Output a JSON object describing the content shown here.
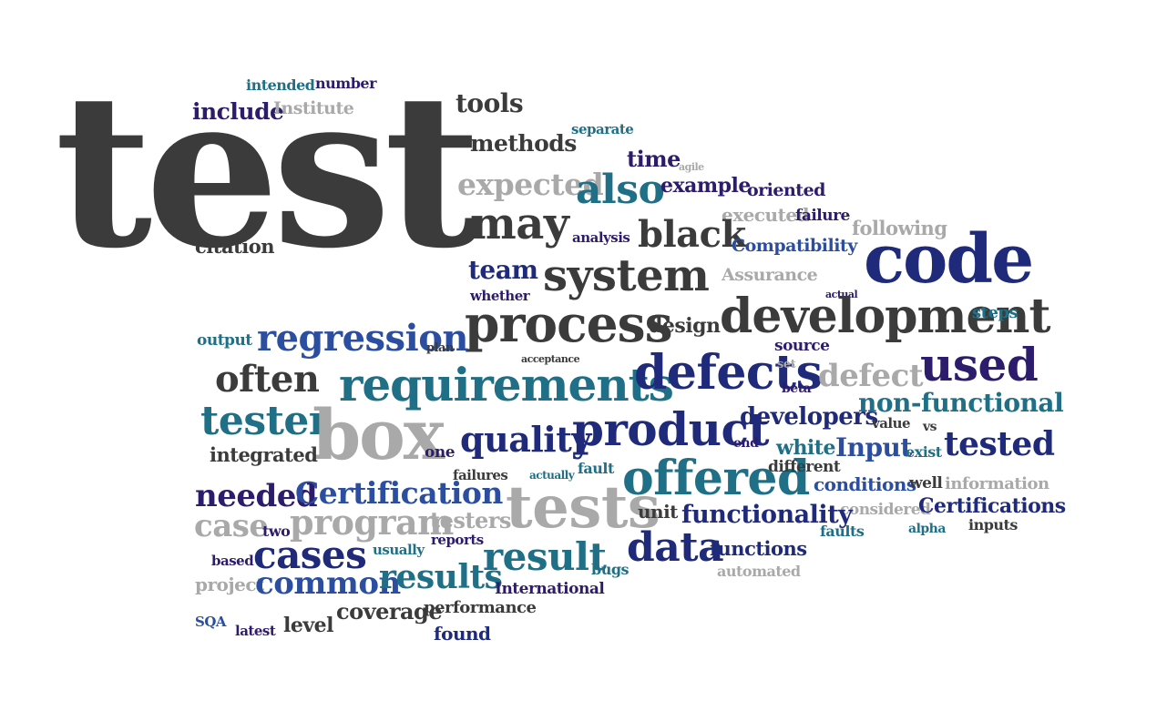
{
  "word_cloud": {
    "words": [
      "test",
      "intended",
      "number",
      "include",
      "Institute",
      "tools",
      "methods",
      "separate",
      "expected",
      "time",
      "agile",
      "also",
      "example",
      "oriented",
      "may",
      "executed",
      "failure",
      "following",
      "black",
      "analysis",
      "Compatibility",
      "code",
      "citation",
      "team",
      "system",
      "Assurance",
      "whether",
      "actual",
      "process",
      "design",
      "development",
      "steps",
      "output",
      "regression",
      "plan",
      "source",
      "acceptance",
      "often",
      "requirements",
      "defects",
      "set",
      "defect",
      "used",
      "beta",
      "non-functional",
      "tester",
      "box",
      "developers",
      "value",
      "vs",
      "quality",
      "product",
      "integrated",
      "one",
      "end",
      "white",
      "Input",
      "exist",
      "tested",
      "failures",
      "actually",
      "fault",
      "offered",
      "different",
      "needed",
      "Certification",
      "conditions",
      "well",
      "information",
      "tests",
      "unit",
      "considered",
      "Certifications",
      "case",
      "two",
      "program",
      "testers",
      "functionality",
      "faults",
      "alpha",
      "inputs",
      "based",
      "cases",
      "usually",
      "reports",
      "result",
      "data",
      "functions",
      "project",
      "common",
      "results",
      "bugs",
      "automated",
      "International",
      "SQA",
      "latest",
      "level",
      "coverage",
      "performance",
      "found"
    ]
  }
}
